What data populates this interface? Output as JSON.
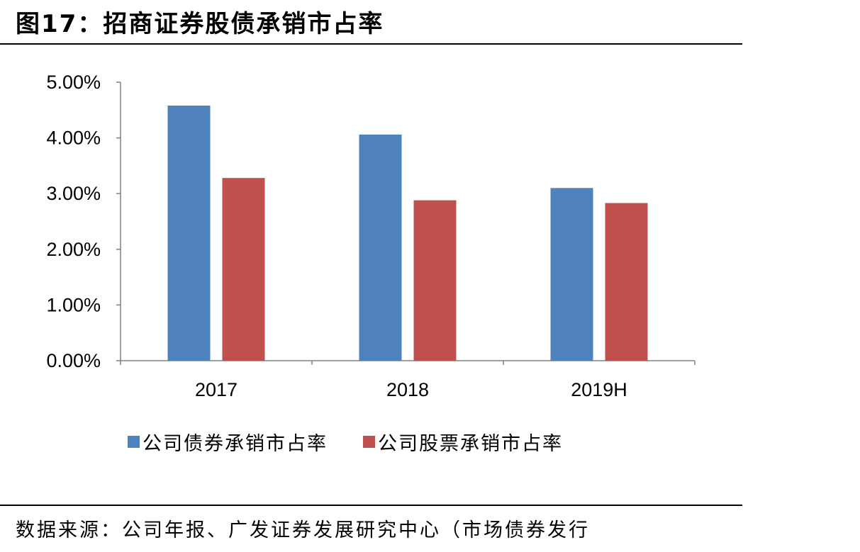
{
  "figure": {
    "title": "图17：招商证券股债承销市占率"
  },
  "source": {
    "text": "数据来源：公司年报、广发证券发展研究中心（市场债券发行"
  },
  "colors": {
    "series_1": "#4F81BD",
    "series_2": "#C0504D",
    "axis": "#808080"
  },
  "chart_data": {
    "type": "bar",
    "title": "",
    "xlabel": "",
    "ylabel": "",
    "categories": [
      "2017",
      "2018",
      "2019H"
    ],
    "series": [
      {
        "name": "公司债券承销市占率",
        "values": [
          4.58,
          4.06,
          3.1
        ]
      },
      {
        "name": "公司股票承销市占率",
        "values": [
          3.28,
          2.88,
          2.83
        ]
      }
    ],
    "ylim": [
      0,
      5
    ],
    "yticks": [
      "0.00%",
      "1.00%",
      "2.00%",
      "3.00%",
      "4.00%",
      "5.00%"
    ],
    "grid": false,
    "legend_position": "bottom"
  }
}
